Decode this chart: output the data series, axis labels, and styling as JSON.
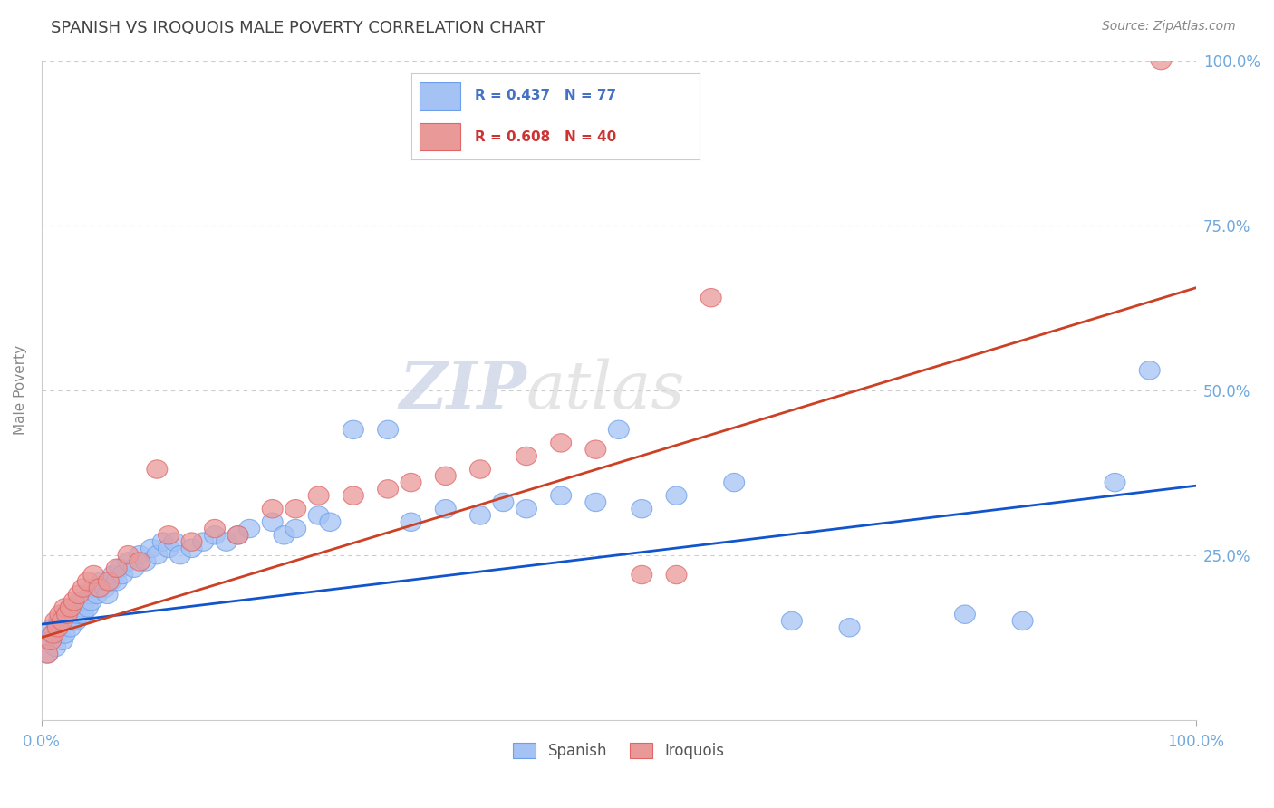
{
  "title": "SPANISH VS IROQUOIS MALE POVERTY CORRELATION CHART",
  "source_text": "Source: ZipAtlas.com",
  "ylabel": "Male Poverty",
  "xlim": [
    0,
    1
  ],
  "ylim": [
    0,
    1
  ],
  "spanish_R": 0.437,
  "spanish_N": 77,
  "iroquois_R": 0.608,
  "iroquois_N": 40,
  "spanish_color": "#a4c2f4",
  "spanish_edge_color": "#6d9eeb",
  "iroquois_color": "#ea9999",
  "iroquois_edge_color": "#e06666",
  "spanish_line_color": "#1155cc",
  "iroquois_line_color": "#cc4125",
  "title_color": "#434343",
  "tick_color": "#6fa8dc",
  "watermark_zip": "ZIP",
  "watermark_atlas": "atlas",
  "background_color": "#ffffff",
  "grid_color": "#cccccc",
  "legend_text_color": "#1155cc",
  "legend_r_color": "#4472c4",
  "legend_n_color": "#4472c4",
  "spanish_line_start_y": 0.145,
  "spanish_line_end_y": 0.355,
  "iroquois_line_start_y": 0.125,
  "iroquois_line_end_y": 0.655,
  "spanish_x": [
    0.005,
    0.007,
    0.009,
    0.01,
    0.012,
    0.014,
    0.015,
    0.016,
    0.018,
    0.02,
    0.02,
    0.022,
    0.025,
    0.025,
    0.027,
    0.028,
    0.03,
    0.03,
    0.032,
    0.033,
    0.035,
    0.036,
    0.038,
    0.04,
    0.042,
    0.043,
    0.045,
    0.048,
    0.05,
    0.052,
    0.055,
    0.057,
    0.06,
    0.062,
    0.065,
    0.068,
    0.07,
    0.075,
    0.08,
    0.085,
    0.09,
    0.095,
    0.1,
    0.105,
    0.11,
    0.115,
    0.12,
    0.13,
    0.14,
    0.15,
    0.16,
    0.17,
    0.18,
    0.2,
    0.21,
    0.22,
    0.24,
    0.25,
    0.27,
    0.3,
    0.32,
    0.35,
    0.38,
    0.4,
    0.42,
    0.45,
    0.48,
    0.5,
    0.52,
    0.55,
    0.6,
    0.65,
    0.7,
    0.8,
    0.85,
    0.93,
    0.96
  ],
  "spanish_y": [
    0.1,
    0.12,
    0.13,
    0.14,
    0.11,
    0.13,
    0.15,
    0.14,
    0.12,
    0.13,
    0.16,
    0.15,
    0.14,
    0.17,
    0.15,
    0.16,
    0.15,
    0.17,
    0.16,
    0.18,
    0.17,
    0.16,
    0.18,
    0.17,
    0.19,
    0.18,
    0.2,
    0.19,
    0.2,
    0.21,
    0.2,
    0.19,
    0.21,
    0.22,
    0.21,
    0.23,
    0.22,
    0.24,
    0.23,
    0.25,
    0.24,
    0.26,
    0.25,
    0.27,
    0.26,
    0.27,
    0.25,
    0.26,
    0.27,
    0.28,
    0.27,
    0.28,
    0.29,
    0.3,
    0.28,
    0.29,
    0.31,
    0.3,
    0.44,
    0.44,
    0.3,
    0.32,
    0.31,
    0.33,
    0.32,
    0.34,
    0.33,
    0.44,
    0.32,
    0.34,
    0.36,
    0.15,
    0.14,
    0.16,
    0.15,
    0.36,
    0.53
  ],
  "iroquois_x": [
    0.005,
    0.008,
    0.01,
    0.012,
    0.014,
    0.016,
    0.018,
    0.02,
    0.022,
    0.025,
    0.028,
    0.032,
    0.036,
    0.04,
    0.045,
    0.05,
    0.058,
    0.065,
    0.075,
    0.085,
    0.1,
    0.11,
    0.13,
    0.15,
    0.17,
    0.2,
    0.22,
    0.24,
    0.27,
    0.3,
    0.32,
    0.35,
    0.38,
    0.42,
    0.45,
    0.48,
    0.52,
    0.55,
    0.58,
    0.97
  ],
  "iroquois_y": [
    0.1,
    0.12,
    0.13,
    0.15,
    0.14,
    0.16,
    0.15,
    0.17,
    0.16,
    0.17,
    0.18,
    0.19,
    0.2,
    0.21,
    0.22,
    0.2,
    0.21,
    0.23,
    0.25,
    0.24,
    0.38,
    0.28,
    0.27,
    0.29,
    0.28,
    0.32,
    0.32,
    0.34,
    0.34,
    0.35,
    0.36,
    0.37,
    0.38,
    0.4,
    0.42,
    0.41,
    0.22,
    0.22,
    0.64,
    1.0
  ]
}
